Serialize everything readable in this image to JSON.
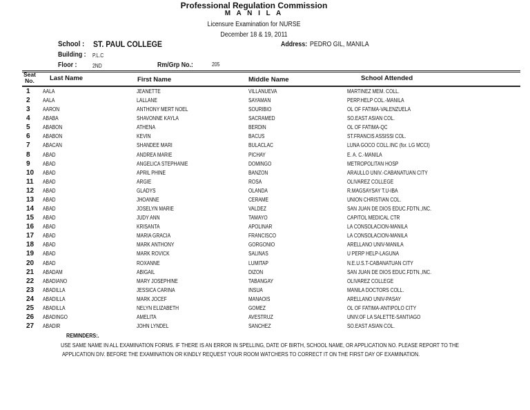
{
  "header": {
    "org": "Professional Regulation Commission",
    "city": "M A N I L A",
    "exam": "Licensure Examination for  NURSE",
    "date": "December 18 & 19, 2011"
  },
  "info": {
    "school_label": "School  :",
    "school": "ST. PAUL COLLEGE",
    "address_label": "Address:",
    "address": "PEDRO GIL, MANILA",
    "building_label": "Building :",
    "building": "P.L.C",
    "floor_label": "Floor    :",
    "floor": "2ND",
    "room_label": "Rm/Grp No.:",
    "room": "205"
  },
  "table": {
    "columns": {
      "seat": "Seat No.",
      "last": "Last Name",
      "first": "First Name",
      "middle": "Middle Name",
      "school": "School  Attended"
    },
    "rows": [
      [
        "1",
        "AALA",
        "JEANETTE",
        "VILLANUEVA",
        "MARTINEZ MEM. COLL."
      ],
      [
        "2",
        "AALA",
        "LALLANE",
        "SAYAMAN",
        "PERP.HELP COL.-MANILA"
      ],
      [
        "3",
        "AARON",
        "ANTHONY MERT NOEL",
        "SOURIBIO",
        "OL OF FATIMA-VALENZUELA"
      ],
      [
        "4",
        "ABABA",
        "SHAVONNE KAYLA",
        "SACRAMED",
        "SO.EAST ASIAN COL."
      ],
      [
        "5",
        "ABABON",
        "ATHENA",
        "BERDIN",
        "OL OF FATIMA-QC"
      ],
      [
        "6",
        "ABABON",
        "KEVIN",
        "BACUS",
        "ST.FRANCIS ASSISSI COL."
      ],
      [
        "7",
        "ABACAN",
        "SHANDEE MARI",
        "BULACLAC",
        "LUNA GOCO COLL.INC (for. LG MCCI)"
      ],
      [
        "8",
        "ABAD",
        "ANDREA MARIE",
        "PICHAY",
        "E. A. C.-MANILA"
      ],
      [
        "9",
        "ABAD",
        "ANGELICA STEPHANIE",
        "DOMINGO",
        "METROPOLITAN HOSP"
      ],
      [
        "10",
        "ABAD",
        "APRIL PHINE",
        "BANZON",
        "ARAULLO UNIV.-CABANATUAN CITY"
      ],
      [
        "11",
        "ABAD",
        "ARGIE",
        "ROSA",
        "OLIVAREZ COLLEGE"
      ],
      [
        "12",
        "ABAD",
        "GLADYS",
        "OLANDA",
        "R.MAGSAYSAY T.U-IBA"
      ],
      [
        "13",
        "ABAD",
        "JHOANNE",
        "CERAME",
        "UNION CHRISTIAN COL."
      ],
      [
        "14",
        "ABAD",
        "JOSELYN MARIE",
        "VALDEZ",
        "SAN JUAN DE DIOS EDUC.FDTN.,INC."
      ],
      [
        "15",
        "ABAD",
        "JUDY ANN",
        "TAMAYO",
        "CAPITOL MEDICAL CTR"
      ],
      [
        "16",
        "ABAD",
        "KRISANTA",
        "APOLINAR",
        "LA CONSOLACION-MANILA"
      ],
      [
        "17",
        "ABAD",
        "MARIA GRACIA",
        "FRANCISCO",
        "LA CONSOLACION-MANILA"
      ],
      [
        "18",
        "ABAD",
        "MARK ANTHONY",
        "GORGONIO",
        "ARELLANO UNIV-MANILA"
      ],
      [
        "19",
        "ABAD",
        "MARK ROVICK",
        "SALINAS",
        "U PERP HELP-LAGUNA"
      ],
      [
        "20",
        "ABAD",
        "ROXANNE",
        "LUMITAP",
        "N.E.U.S.T-CABANATUAN CITY"
      ],
      [
        "21",
        "ABADAM",
        "ABIGAIL",
        "DIZON",
        "SAN JUAN DE DIOS EDUC.FDTN.,INC."
      ],
      [
        "22",
        "ABADIANO",
        "MARY JOSEPHINE",
        "TABANGAY",
        "OLIVAREZ COLLEGE"
      ],
      [
        "23",
        "ABADILLA",
        "JESSICA CARINA",
        "INSUA",
        "MANILA DOCTORS COLL."
      ],
      [
        "24",
        "ABADILLA",
        "MARK JOCEF",
        "MANAOIS",
        "ARELLANO UNIV-PASAY"
      ],
      [
        "25",
        "ABADILLA",
        "NELYN ELIZABETH",
        "GOMEZ",
        "OL OF FATIMA-ANTIPOLO CITY"
      ],
      [
        "26",
        "ABADINGO",
        "AMELITA",
        "AVESTRUZ",
        "UNIV.OF LA SALETTE-SANTIAGO"
      ],
      [
        "27",
        "ABADIR",
        "JOHN LYNDEL",
        "SANCHEZ",
        "SO.EAST ASIAN COL."
      ]
    ]
  },
  "reminders": {
    "title": "REMINDERS:.",
    "line1": "USE  SAME NAME IN ALL EXAMINATION FORMS.  IF THERE IS AN ERROR IN SPELLING, DATE OF BIRTH, SCHOOL NAME,  OR APPLICATION NO. PLEASE REPORT  TO THE",
    "line2": "APPLICATION DIV. BEFORE THE EXAMINATION OR KINDLY REQUEST YOUR  ROOM WATCHERS TO CORRECT IT ON THE FIRST DAY OF EXAMINATION."
  }
}
